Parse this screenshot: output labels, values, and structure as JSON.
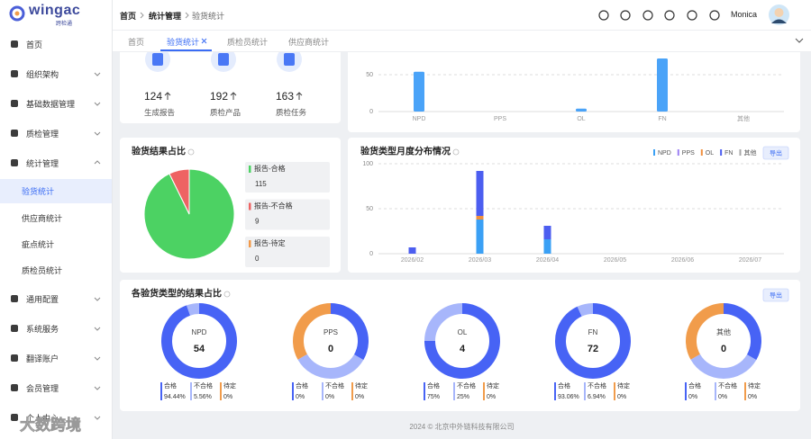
{
  "sidebar": {
    "logo": "wingac",
    "logo_sub": "跨检通",
    "menu": [
      "首页",
      "组织架构",
      "基础数据管理",
      "质检管理",
      "统计管理",
      "通用配置",
      "系统服务",
      "翻译账户",
      "会员管理",
      "个人中心"
    ],
    "submenu": [
      "验货统计",
      "供应商统计",
      "疵点统计",
      "质检员统计"
    ],
    "active_submenu": 0
  },
  "header": {
    "breadcrumb": [
      "首页",
      "统计管理",
      "验货统计"
    ],
    "user": "Monica"
  },
  "tabs": [
    "首页",
    "验货统计",
    "质检员统计",
    "供应商统计"
  ],
  "active_tab": 1,
  "stats": [
    {
      "value": 124,
      "label": "生成报告"
    },
    {
      "value": 192,
      "label": "质检产品"
    },
    {
      "value": 163,
      "label": "质检任务"
    }
  ],
  "chart_data": [
    {
      "type": "bar",
      "categories": [
        "NPD",
        "PPS",
        "OL",
        "FN",
        "其他"
      ],
      "values": [
        54,
        0,
        4,
        72,
        0
      ],
      "color": "#4aa3f8",
      "ylim": [
        0,
        100
      ],
      "yticks": [
        0,
        50
      ],
      "grid": true
    },
    {
      "type": "pie",
      "title": "验货结果占比",
      "categories": [
        "报告-合格",
        "报告-不合格",
        "报告-待定"
      ],
      "values": [
        115,
        9,
        0
      ],
      "colors": [
        "#4cd263",
        "#ee6363",
        "#f29a4a"
      ]
    },
    {
      "type": "stacked_bar",
      "title": "验货类型月度分布情况",
      "button": "导出",
      "categories": [
        "2026/02",
        "2026/03",
        "2026/04",
        "2026/05",
        "2026/06",
        "2026/07"
      ],
      "series": [
        {
          "name": "NPD",
          "color": "#3aa0f5",
          "values": [
            0,
            38,
            16,
            0,
            0,
            0
          ]
        },
        {
          "name": "PPS",
          "color": "#9b7ff3",
          "values": [
            0,
            0,
            0,
            0,
            0,
            0
          ]
        },
        {
          "name": "OL",
          "color": "#f0903e",
          "values": [
            0,
            4,
            0,
            0,
            0,
            0
          ]
        },
        {
          "name": "FN",
          "color": "#4c5ef0",
          "values": [
            7,
            50,
            15,
            0,
            0,
            0
          ]
        },
        {
          "name": "其他",
          "color": "#a8a8a8",
          "values": [
            0,
            0,
            0,
            0,
            0,
            0
          ]
        }
      ],
      "ylim": [
        0,
        100
      ],
      "yticks": [
        0,
        50,
        100
      ],
      "grid": true,
      "legend": "top-right"
    },
    {
      "type": "donut",
      "title": "各验货类型的结果占比",
      "button": "导出",
      "categories": [
        "合格",
        "不合格",
        "待定"
      ],
      "colors": [
        "#4763f5",
        "#a7b6fb",
        "#f19c4b"
      ],
      "series": [
        {
          "name": "NPD",
          "total": 54,
          "values": [
            94.44,
            5.56,
            0
          ],
          "value_labels": [
            "94.44%",
            "5.56%",
            "0%"
          ]
        },
        {
          "name": "PPS",
          "total": 0,
          "values": [
            0,
            0,
            0
          ],
          "value_labels": [
            "0%",
            "0%",
            "0%"
          ]
        },
        {
          "name": "OL",
          "total": 4,
          "values": [
            75,
            25,
            0
          ],
          "value_labels": [
            "75%",
            "25%",
            "0%"
          ]
        },
        {
          "name": "FN",
          "total": 72,
          "values": [
            93.06,
            6.94,
            0
          ],
          "value_labels": [
            "93.06%",
            "6.94%",
            "0%"
          ]
        },
        {
          "name": "其他",
          "total": 0,
          "values": [
            0,
            0,
            0
          ],
          "value_labels": [
            "0%",
            "0%",
            "0%"
          ]
        }
      ]
    }
  ],
  "footer": "2024 © 北京中外链科技有限公司",
  "watermark": "大数跨境"
}
